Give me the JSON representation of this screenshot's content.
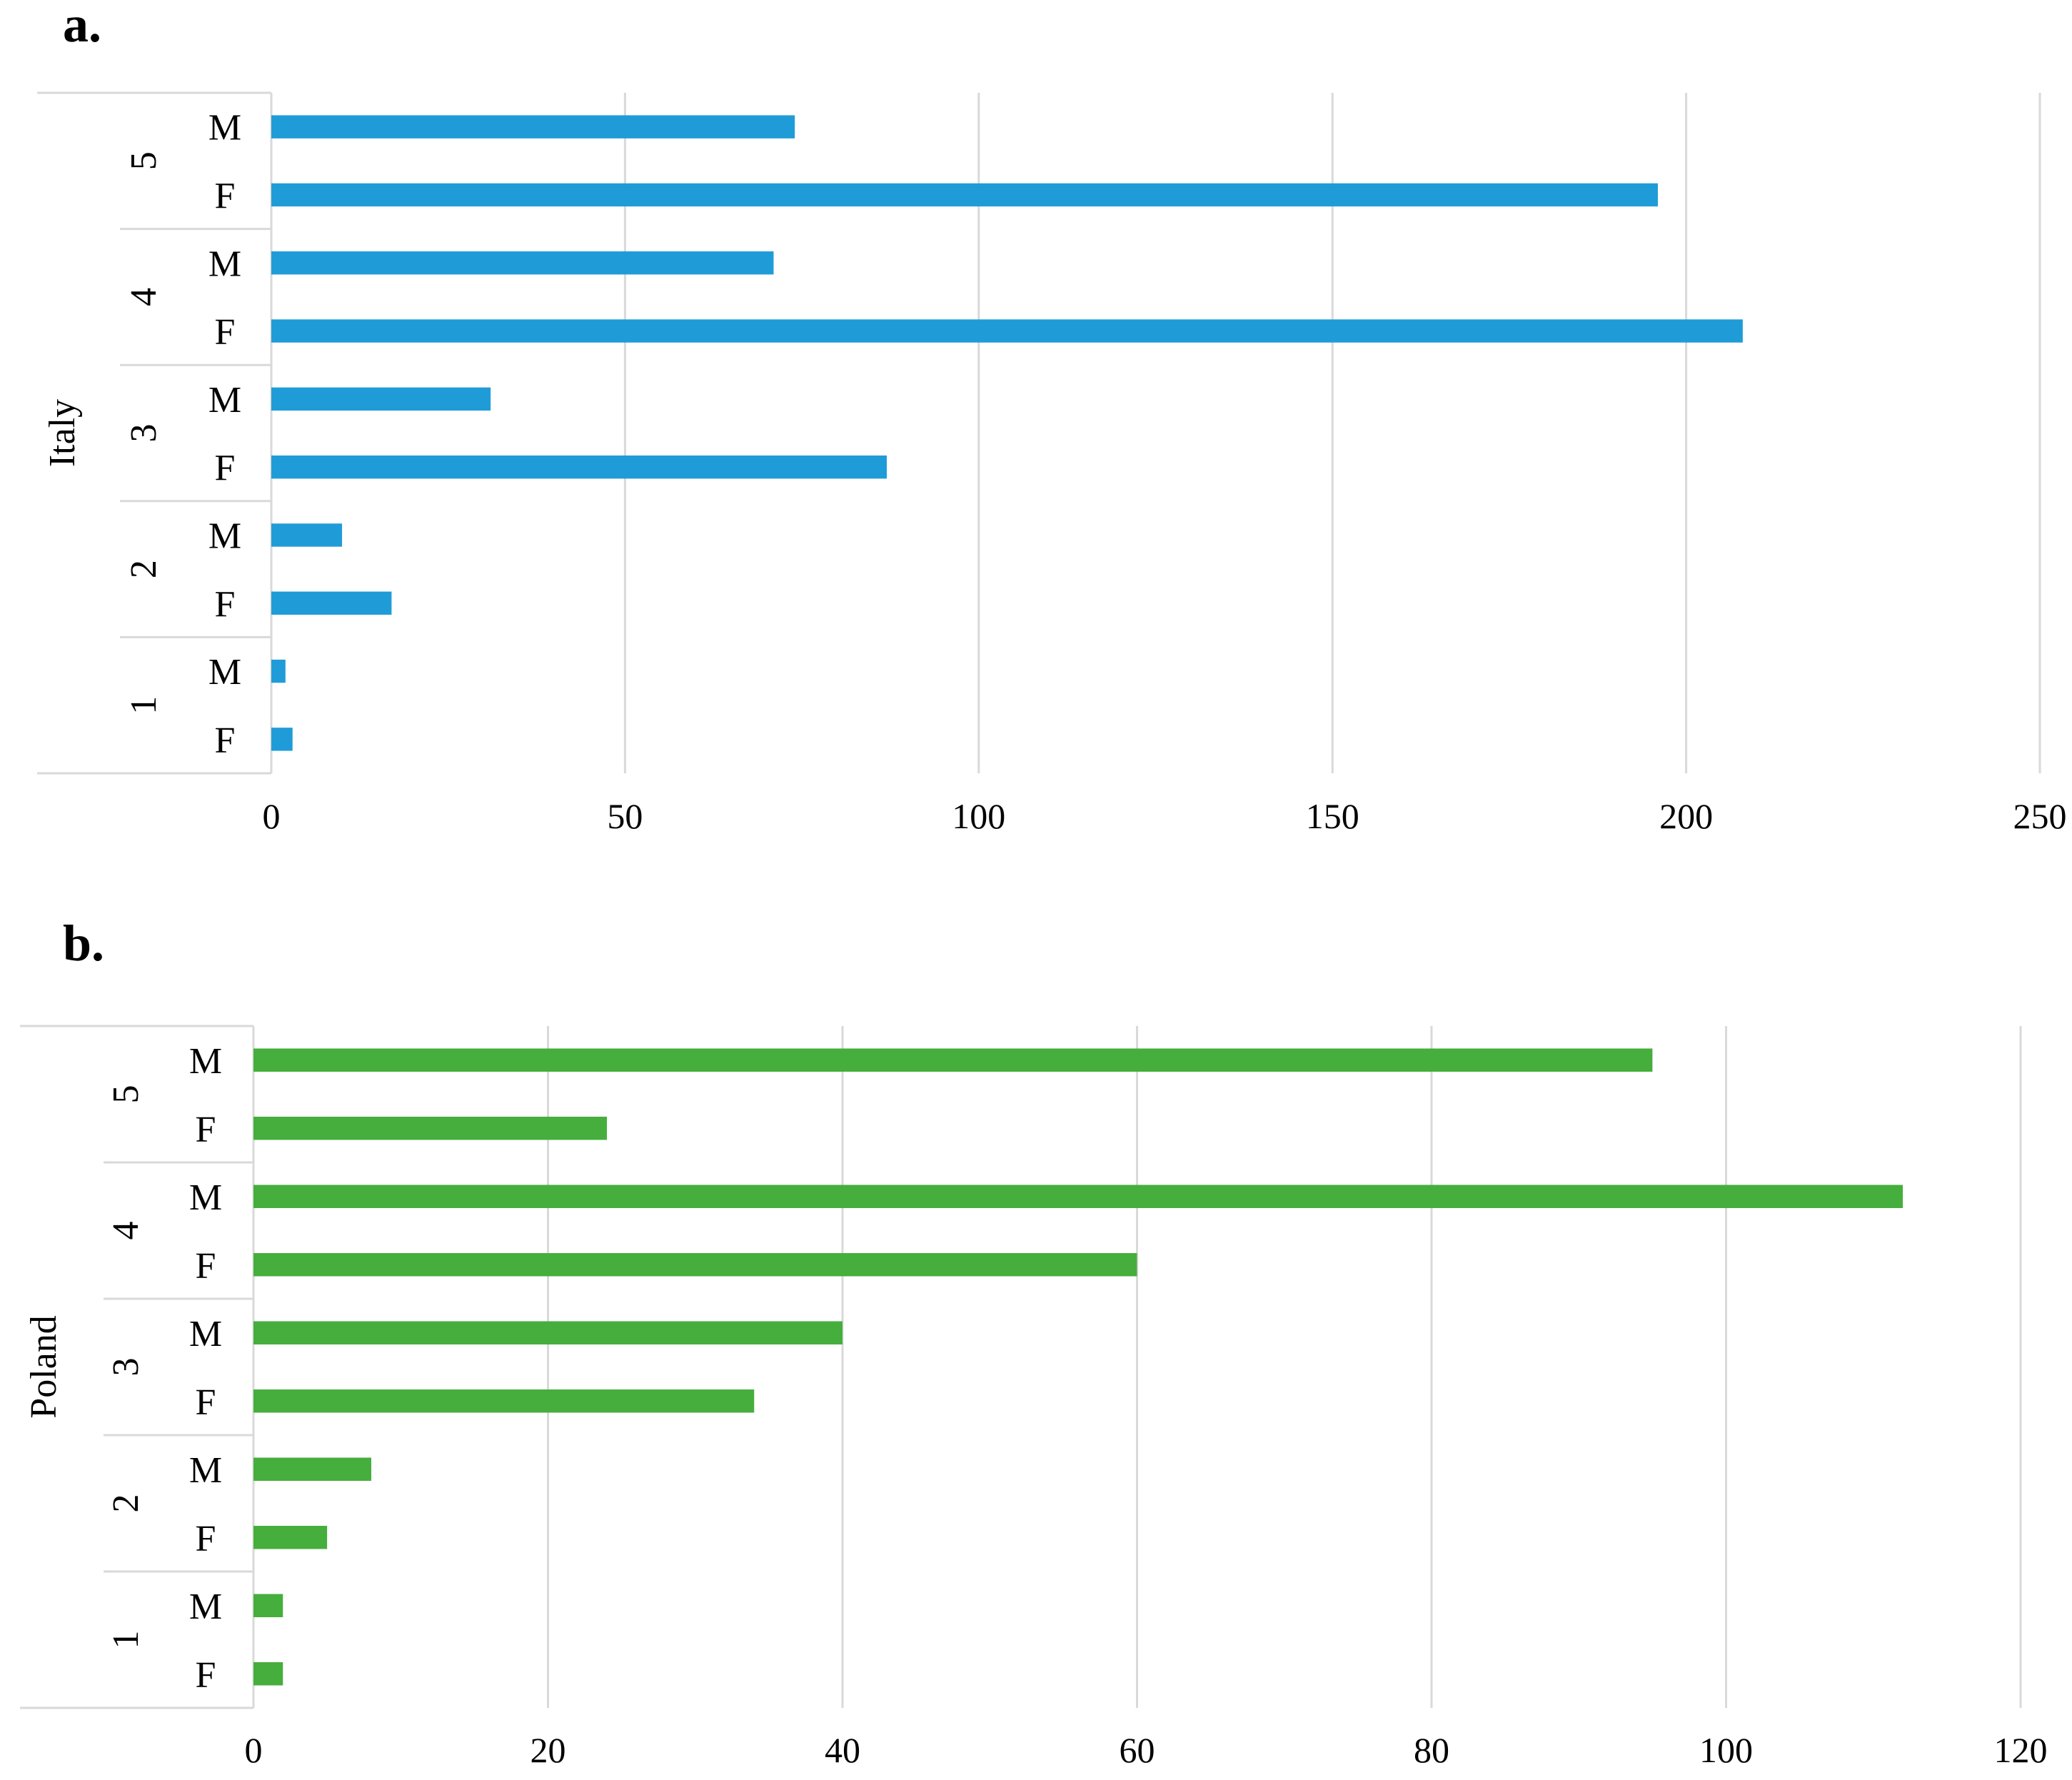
{
  "chart_data": [
    {
      "type": "bar",
      "orientation": "horizontal",
      "panel_label": "a.",
      "group_label": "Italy",
      "xlim": [
        0,
        250
      ],
      "xticks": [
        "0",
        "50",
        "100",
        "150",
        "200",
        "250"
      ],
      "grid": true,
      "color": "#1f9cd8",
      "categories": [
        {
          "group": "5",
          "sub": "M",
          "value": 74
        },
        {
          "group": "5",
          "sub": "F",
          "value": 196
        },
        {
          "group": "4",
          "sub": "M",
          "value": 71
        },
        {
          "group": "4",
          "sub": "F",
          "value": 208
        },
        {
          "group": "3",
          "sub": "M",
          "value": 31
        },
        {
          "group": "3",
          "sub": "F",
          "value": 87
        },
        {
          "group": "2",
          "sub": "M",
          "value": 10
        },
        {
          "group": "2",
          "sub": "F",
          "value": 17
        },
        {
          "group": "1",
          "sub": "M",
          "value": 2
        },
        {
          "group": "1",
          "sub": "F",
          "value": 3
        }
      ]
    },
    {
      "type": "bar",
      "orientation": "horizontal",
      "panel_label": "b.",
      "group_label": "Poland",
      "xlim": [
        0,
        120
      ],
      "xticks": [
        "0",
        "20",
        "40",
        "60",
        "80",
        "100",
        "120"
      ],
      "grid": true,
      "color": "#45ae3c",
      "categories": [
        {
          "group": "5",
          "sub": "M",
          "value": 95
        },
        {
          "group": "5",
          "sub": "F",
          "value": 24
        },
        {
          "group": "4",
          "sub": "M",
          "value": 112
        },
        {
          "group": "4",
          "sub": "F",
          "value": 60
        },
        {
          "group": "3",
          "sub": "M",
          "value": 40
        },
        {
          "group": "3",
          "sub": "F",
          "value": 34
        },
        {
          "group": "2",
          "sub": "M",
          "value": 8
        },
        {
          "group": "2",
          "sub": "F",
          "value": 5
        },
        {
          "group": "1",
          "sub": "M",
          "value": 2
        },
        {
          "group": "1",
          "sub": "F",
          "value": 2
        }
      ]
    }
  ]
}
